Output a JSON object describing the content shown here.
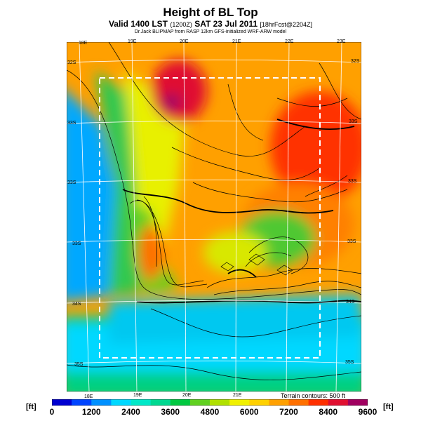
{
  "header": {
    "title": "Height of BL Top",
    "subtitle_main": "Valid 1400 LST",
    "subtitle_code": "(1200Z)",
    "subtitle_date": "SAT 23 Jul 2011",
    "subtitle_fcst": "[18hrFcst@2204Z]",
    "credit": "Dr.Jack BLIPMAP from RASP 12km GFS-initialized WRF-ARW model"
  },
  "map": {
    "lon_labels_top": [
      "18E",
      "19E",
      "20E",
      "21E",
      "22E",
      "23E"
    ],
    "lon_labels_bottom": [
      "18E",
      "19E",
      "20E",
      "21E"
    ],
    "lat_labels_left": [
      "32S",
      "33S",
      "33S",
      "33S",
      "34S",
      "35S"
    ],
    "lat_labels_right": [
      "32S",
      "33S",
      "33S",
      "33S",
      "34S",
      "35S"
    ],
    "terrain_note": "Terrain contours: 500 ft"
  },
  "colorbar": {
    "unit_left": "[ft]",
    "unit_right": "[ft]",
    "labels": [
      "0",
      "1200",
      "2400",
      "3600",
      "4800",
      "6000",
      "7200",
      "8400",
      "9600"
    ],
    "colors": [
      "#0000d0",
      "#0044ff",
      "#0090ff",
      "#00d8ff",
      "#00e8c8",
      "#00d890",
      "#00c840",
      "#60d020",
      "#b0e000",
      "#f0f000",
      "#ffd000",
      "#ffa000",
      "#ff7000",
      "#ff3000",
      "#e01030",
      "#a00060"
    ]
  }
}
